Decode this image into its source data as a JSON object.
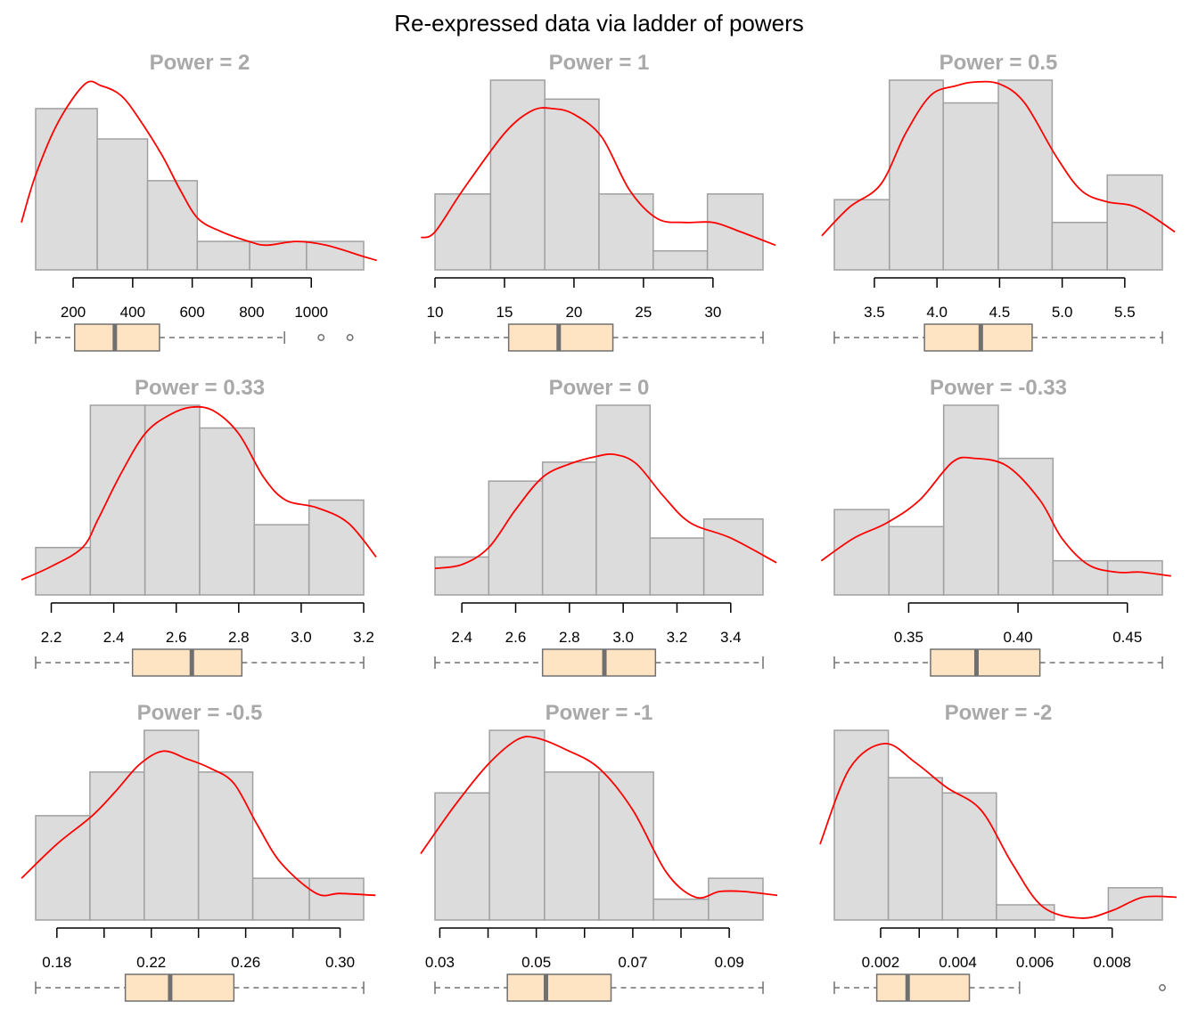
{
  "title": "Re-expressed data via ladder of powers",
  "colors": {
    "bar_fill": "#dcdcdc",
    "bar_stroke": "#a0a0a0",
    "density": "#ff0000",
    "box_fill": "#ffe4c4",
    "box_stroke": "#707070",
    "median": "#707070",
    "panel_title": "#a9a9a9"
  },
  "chart_data": [
    {
      "type": "histogram",
      "title": "Power =  2",
      "x_range": [
        74,
        1176
      ],
      "bins": [
        [
          74,
          281,
          0.85
        ],
        [
          281,
          450,
          0.69
        ],
        [
          450,
          617,
          0.47
        ],
        [
          617,
          793,
          0.15
        ],
        [
          793,
          984,
          0.15
        ],
        [
          984,
          1176,
          0.15
        ]
      ],
      "density": [
        [
          0,
          0.25
        ],
        [
          74,
          0.5
        ],
        [
          150,
          0.78
        ],
        [
          240,
          0.98
        ],
        [
          295,
          0.97
        ],
        [
          360,
          0.92
        ],
        [
          420,
          0.8
        ],
        [
          500,
          0.6
        ],
        [
          560,
          0.42
        ],
        [
          620,
          0.27
        ],
        [
          700,
          0.2
        ],
        [
          790,
          0.15
        ],
        [
          850,
          0.13
        ],
        [
          950,
          0.15
        ],
        [
          1050,
          0.13
        ],
        [
          1176,
          0.07
        ],
        [
          1220,
          0.05
        ]
      ],
      "ticks": [
        200,
        400,
        600,
        800,
        1000
      ],
      "tick_labels": [
        "200",
        "400",
        "600",
        "800",
        "1000"
      ],
      "boxplot": {
        "min": 74,
        "q1": 205,
        "median": 340,
        "q3": 490,
        "max": 910,
        "outliers": [
          1033,
          1130
        ]
      }
    },
    {
      "type": "histogram",
      "title": "Power =  1",
      "x_range": [
        10,
        33.6
      ],
      "bins": [
        [
          10,
          14,
          0.4
        ],
        [
          14,
          17.9,
          1.0
        ],
        [
          17.9,
          21.8,
          0.9
        ],
        [
          21.8,
          25.7,
          0.4
        ],
        [
          25.7,
          29.6,
          0.1
        ],
        [
          29.6,
          33.6,
          0.4
        ]
      ],
      "density": [
        [
          9,
          0.17
        ],
        [
          10,
          0.2
        ],
        [
          12,
          0.42
        ],
        [
          15,
          0.72
        ],
        [
          17,
          0.84
        ],
        [
          18.5,
          0.85
        ],
        [
          20,
          0.82
        ],
        [
          22,
          0.7
        ],
        [
          24,
          0.42
        ],
        [
          26,
          0.27
        ],
        [
          28,
          0.25
        ],
        [
          30,
          0.25
        ],
        [
          32,
          0.2
        ],
        [
          34.5,
          0.13
        ]
      ],
      "ticks": [
        10,
        15,
        20,
        25,
        30
      ],
      "tick_labels": [
        "10",
        "15",
        "20",
        "25",
        "30"
      ],
      "boxplot": {
        "min": 10,
        "q1": 15.3,
        "median": 18.9,
        "q3": 22.8,
        "max": 33.6,
        "outliers": []
      }
    },
    {
      "type": "histogram",
      "title": "Power =  0.5",
      "x_range": [
        3.18,
        5.8
      ],
      "bins": [
        [
          3.18,
          3.62,
          0.37
        ],
        [
          3.62,
          4.05,
          1.0
        ],
        [
          4.05,
          4.49,
          0.88
        ],
        [
          4.49,
          4.92,
          1.0
        ],
        [
          4.92,
          5.36,
          0.25
        ],
        [
          5.36,
          5.8,
          0.5
        ]
      ],
      "density": [
        [
          3.08,
          0.18
        ],
        [
          3.3,
          0.33
        ],
        [
          3.55,
          0.45
        ],
        [
          3.75,
          0.72
        ],
        [
          3.95,
          0.92
        ],
        [
          4.15,
          0.97
        ],
        [
          4.3,
          0.99
        ],
        [
          4.5,
          0.98
        ],
        [
          4.7,
          0.88
        ],
        [
          4.95,
          0.6
        ],
        [
          5.15,
          0.42
        ],
        [
          5.35,
          0.36
        ],
        [
          5.55,
          0.34
        ],
        [
          5.7,
          0.29
        ],
        [
          5.9,
          0.2
        ]
      ],
      "ticks": [
        3.5,
        4.0,
        4.5,
        5.0,
        5.5
      ],
      "tick_labels": [
        "3.5",
        "4.0",
        "4.5",
        "5.0",
        "5.5"
      ],
      "boxplot": {
        "min": 3.18,
        "q1": 3.9,
        "median": 4.35,
        "q3": 4.76,
        "max": 5.8,
        "outliers": []
      }
    },
    {
      "type": "histogram",
      "title": "Power =  0.33",
      "x_range": [
        2.15,
        3.2
      ],
      "bins": [
        [
          2.15,
          2.325,
          0.25
        ],
        [
          2.325,
          2.5,
          1.0
        ],
        [
          2.5,
          2.675,
          1.0
        ],
        [
          2.675,
          2.85,
          0.88
        ],
        [
          2.85,
          3.025,
          0.37
        ],
        [
          3.025,
          3.2,
          0.5
        ]
      ],
      "density": [
        [
          2.1,
          0.08
        ],
        [
          2.2,
          0.15
        ],
        [
          2.3,
          0.25
        ],
        [
          2.35,
          0.4
        ],
        [
          2.42,
          0.63
        ],
        [
          2.5,
          0.85
        ],
        [
          2.58,
          0.95
        ],
        [
          2.65,
          0.99
        ],
        [
          2.72,
          0.97
        ],
        [
          2.8,
          0.85
        ],
        [
          2.88,
          0.62
        ],
        [
          2.95,
          0.5
        ],
        [
          3.05,
          0.46
        ],
        [
          3.15,
          0.38
        ],
        [
          3.24,
          0.2
        ]
      ],
      "ticks": [
        2.2,
        2.4,
        2.6,
        2.8,
        3.0,
        3.2
      ],
      "tick_labels": [
        "2.2",
        "2.4",
        "2.6",
        "2.8",
        "3.0",
        "3.2"
      ],
      "boxplot": {
        "min": 2.15,
        "q1": 2.46,
        "median": 2.65,
        "q3": 2.81,
        "max": 3.2,
        "outliers": []
      }
    },
    {
      "type": "histogram",
      "title": "Power =  0",
      "x_range": [
        2.3,
        3.52
      ],
      "bins": [
        [
          2.3,
          2.5,
          0.2
        ],
        [
          2.5,
          2.7,
          0.6
        ],
        [
          2.7,
          2.9,
          0.7
        ],
        [
          2.9,
          3.1,
          1.0
        ],
        [
          3.1,
          3.3,
          0.3
        ],
        [
          3.3,
          3.52,
          0.4
        ]
      ],
      "density": [
        [
          2.3,
          0.14
        ],
        [
          2.4,
          0.16
        ],
        [
          2.5,
          0.25
        ],
        [
          2.6,
          0.45
        ],
        [
          2.7,
          0.62
        ],
        [
          2.8,
          0.69
        ],
        [
          2.9,
          0.73
        ],
        [
          2.97,
          0.74
        ],
        [
          3.05,
          0.69
        ],
        [
          3.15,
          0.52
        ],
        [
          3.25,
          0.38
        ],
        [
          3.4,
          0.3
        ],
        [
          3.57,
          0.17
        ]
      ],
      "ticks": [
        2.4,
        2.6,
        2.8,
        3.0,
        3.2,
        3.4
      ],
      "tick_labels": [
        "2.4",
        "2.6",
        "2.8",
        "3.0",
        "3.2",
        "3.4"
      ],
      "boxplot": {
        "min": 2.3,
        "q1": 2.7,
        "median": 2.93,
        "q3": 3.12,
        "max": 3.52,
        "outliers": []
      }
    },
    {
      "type": "histogram",
      "title": "Power =  -0.33",
      "x_range": [
        0.316,
        0.466
      ],
      "bins": [
        [
          0.316,
          0.341,
          0.45
        ],
        [
          0.341,
          0.366,
          0.36
        ],
        [
          0.366,
          0.391,
          1.0
        ],
        [
          0.391,
          0.416,
          0.72
        ],
        [
          0.416,
          0.441,
          0.18
        ],
        [
          0.441,
          0.466,
          0.18
        ]
      ],
      "density": [
        [
          0.31,
          0.18
        ],
        [
          0.325,
          0.3
        ],
        [
          0.34,
          0.38
        ],
        [
          0.355,
          0.5
        ],
        [
          0.37,
          0.7
        ],
        [
          0.38,
          0.72
        ],
        [
          0.395,
          0.68
        ],
        [
          0.41,
          0.5
        ],
        [
          0.42,
          0.3
        ],
        [
          0.432,
          0.16
        ],
        [
          0.445,
          0.12
        ],
        [
          0.456,
          0.12
        ],
        [
          0.47,
          0.1
        ]
      ],
      "ticks": [
        0.35,
        0.4,
        0.45
      ],
      "tick_labels": [
        "0.35",
        "0.40",
        "0.45"
      ],
      "boxplot": {
        "min": 0.316,
        "q1": 0.36,
        "median": 0.381,
        "q3": 0.41,
        "max": 0.466,
        "outliers": []
      }
    },
    {
      "type": "histogram",
      "title": "Power =  -0.5",
      "x_range": [
        0.171,
        0.31
      ],
      "bins": [
        [
          0.171,
          0.194,
          0.55
        ],
        [
          0.194,
          0.217,
          0.78
        ],
        [
          0.217,
          0.24,
          1.0
        ],
        [
          0.24,
          0.263,
          0.78
        ],
        [
          0.263,
          0.287,
          0.22
        ],
        [
          0.287,
          0.31,
          0.22
        ]
      ],
      "density": [
        [
          0.165,
          0.22
        ],
        [
          0.18,
          0.4
        ],
        [
          0.195,
          0.55
        ],
        [
          0.205,
          0.68
        ],
        [
          0.215,
          0.82
        ],
        [
          0.225,
          0.89
        ],
        [
          0.235,
          0.85
        ],
        [
          0.245,
          0.8
        ],
        [
          0.255,
          0.72
        ],
        [
          0.265,
          0.5
        ],
        [
          0.275,
          0.3
        ],
        [
          0.29,
          0.14
        ],
        [
          0.3,
          0.14
        ],
        [
          0.315,
          0.13
        ]
      ],
      "ticks": [
        0.18,
        0.2,
        0.22,
        0.24,
        0.26,
        0.28,
        0.3
      ],
      "tick_labels": [
        "0.18",
        "",
        "0.22",
        "",
        "0.26",
        "",
        "0.30"
      ],
      "boxplot": {
        "min": 0.171,
        "q1": 0.209,
        "median": 0.228,
        "q3": 0.255,
        "max": 0.31,
        "outliers": []
      }
    },
    {
      "type": "histogram",
      "title": "Power =  -1",
      "x_range": [
        0.029,
        0.097
      ],
      "bins": [
        [
          0.029,
          0.0403,
          0.67
        ],
        [
          0.0403,
          0.0517,
          1.0
        ],
        [
          0.0517,
          0.063,
          0.78
        ],
        [
          0.063,
          0.0743,
          0.78
        ],
        [
          0.0743,
          0.0857,
          0.11
        ],
        [
          0.0857,
          0.097,
          0.22
        ]
      ],
      "density": [
        [
          0.026,
          0.35
        ],
        [
          0.033,
          0.6
        ],
        [
          0.04,
          0.82
        ],
        [
          0.046,
          0.95
        ],
        [
          0.05,
          0.96
        ],
        [
          0.056,
          0.9
        ],
        [
          0.063,
          0.8
        ],
        [
          0.07,
          0.58
        ],
        [
          0.077,
          0.25
        ],
        [
          0.083,
          0.12
        ],
        [
          0.088,
          0.15
        ],
        [
          0.093,
          0.15
        ],
        [
          0.1,
          0.13
        ]
      ],
      "ticks": [
        0.03,
        0.04,
        0.05,
        0.06,
        0.07,
        0.08,
        0.09
      ],
      "tick_labels": [
        "0.03",
        "",
        "0.05",
        "",
        "0.07",
        "",
        "0.09"
      ],
      "boxplot": {
        "min": 0.029,
        "q1": 0.044,
        "median": 0.052,
        "q3": 0.0655,
        "max": 0.097,
        "outliers": []
      }
    },
    {
      "type": "histogram",
      "title": "Power =  -2",
      "x_range": [
        0.0008,
        0.0093
      ],
      "bins": [
        [
          0.0008,
          0.0022,
          1.0
        ],
        [
          0.0022,
          0.0036,
          0.75
        ],
        [
          0.0036,
          0.005,
          0.67
        ],
        [
          0.005,
          0.0065,
          0.08
        ],
        [
          0.0065,
          0.0079,
          0.0
        ],
        [
          0.0079,
          0.0093,
          0.17
        ]
      ],
      "density": [
        [
          0.0004,
          0.4
        ],
        [
          0.0012,
          0.8
        ],
        [
          0.0021,
          0.93
        ],
        [
          0.0029,
          0.83
        ],
        [
          0.0037,
          0.7
        ],
        [
          0.0046,
          0.58
        ],
        [
          0.0054,
          0.3
        ],
        [
          0.0062,
          0.07
        ],
        [
          0.0072,
          0.01
        ],
        [
          0.008,
          0.05
        ],
        [
          0.0088,
          0.12
        ],
        [
          0.0097,
          0.12
        ]
      ],
      "ticks": [
        0.002,
        0.003,
        0.004,
        0.005,
        0.006,
        0.007,
        0.008
      ],
      "tick_labels": [
        "0.002",
        "",
        "0.004",
        "",
        "0.006",
        "",
        "0.008"
      ],
      "boxplot": {
        "min": 0.0008,
        "q1": 0.0019,
        "median": 0.0027,
        "q3": 0.0043,
        "max": 0.0056,
        "outliers": [
          0.0093
        ]
      }
    }
  ]
}
